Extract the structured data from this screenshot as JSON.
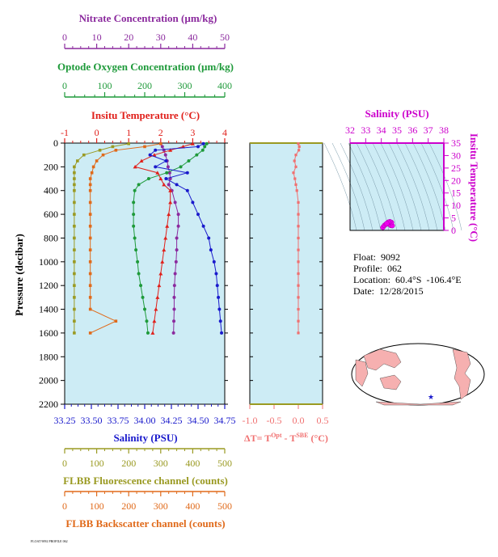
{
  "colors": {
    "nitrate": "#8b2a9e",
    "oxygen": "#1e9a3a",
    "temperature": "#e0201b",
    "salinity": "#1a1acc",
    "fluorescence": "#9a9a22",
    "backscatter": "#e06a1a",
    "delta_t": "#f07070",
    "ts_axis": "#cc00cc",
    "panel_bg": "#cdecf5"
  },
  "main_panel": {
    "ylabel": "Pressure (decibar)",
    "y_ticks": [
      "0",
      "200",
      "400",
      "600",
      "800",
      "1000",
      "1200",
      "1400",
      "1600",
      "1800",
      "2000",
      "2200"
    ],
    "axes": {
      "nitrate": {
        "label": "Nitrate Concentration (µm/kg)",
        "ticks": [
          "0",
          "10",
          "20",
          "30",
          "40",
          "50"
        ]
      },
      "oxygen": {
        "label": "Optode Oxygen Concentration (µm/kg)",
        "ticks": [
          "0",
          "100",
          "200",
          "300",
          "400"
        ]
      },
      "temperature": {
        "label": "Insitu Temperature (°C)",
        "ticks": [
          "-1",
          "0",
          "1",
          "2",
          "3",
          "4"
        ]
      },
      "salinity": {
        "label": "Salinity (PSU)",
        "ticks": [
          "33.25",
          "33.50",
          "33.75",
          "34.00",
          "34.25",
          "34.50",
          "34.75"
        ]
      },
      "fluorescence": {
        "label": "FLBB Fluorescence channel (counts)",
        "ticks": [
          "0",
          "100",
          "200",
          "300",
          "400",
          "500"
        ]
      },
      "backscatter": {
        "label": "FLBB Backscatter channel (counts)",
        "ticks": [
          "0",
          "100",
          "200",
          "300",
          "400",
          "500"
        ]
      }
    }
  },
  "delta_panel": {
    "xlabel_main": "ΔT= T",
    "xlabel_sup1": "Opt",
    "xlabel_mid": " - T",
    "xlabel_sup2": "SBE",
    "xlabel_end": " (°C)",
    "x_ticks": [
      "-1.0",
      "-0.5",
      "0.0",
      "0.5"
    ]
  },
  "ts_panel": {
    "top_label": "Salinity (PSU)",
    "top_ticks": [
      "32",
      "33",
      "34",
      "35",
      "36",
      "37",
      "38"
    ],
    "right_label": "Insitu Temperature (°C)",
    "right_ticks": [
      "0",
      "5",
      "10",
      "15",
      "20",
      "25",
      "30",
      "35"
    ]
  },
  "info": {
    "float": "Float:  9092",
    "profile": "Profile:  062",
    "location": "Location:  60.4°S  -106.4°E",
    "date": "Date:  12/28/2015"
  },
  "footer_text": "FLOAT 9092 PROFILE 062",
  "chart_data": [
    {
      "type": "line",
      "y_axis": "Pressure (decibar)",
      "ylim": [
        2200,
        0
      ],
      "series": [
        {
          "name": "Nitrate Concentration (µm/kg)",
          "xlim": [
            0,
            50
          ],
          "pressure": [
            5,
            30,
            60,
            100,
            150,
            200,
            250,
            300,
            350,
            400,
            500,
            600,
            700,
            800,
            900,
            1000,
            1100,
            1200,
            1300,
            1400,
            1500,
            1600
          ],
          "values": [
            30,
            30.5,
            31,
            31.5,
            32,
            32.3,
            32.8,
            33,
            32.5,
            33.5,
            34.5,
            35.5,
            35.5,
            35,
            35,
            34.8,
            34.5,
            34.3,
            34.2,
            34.2,
            34.1,
            34
          ]
        },
        {
          "name": "Optode Oxygen Concentration (µm/kg)",
          "xlim": [
            0,
            400
          ],
          "pressure": [
            5,
            30,
            60,
            100,
            150,
            200,
            250,
            300,
            350,
            400,
            500,
            600,
            700,
            800,
            900,
            1000,
            1100,
            1200,
            1300,
            1400,
            1500,
            1600
          ],
          "values": [
            355,
            350,
            345,
            330,
            310,
            290,
            255,
            210,
            185,
            175,
            172,
            172,
            172,
            175,
            178,
            182,
            185,
            190,
            195,
            200,
            205,
            208
          ]
        },
        {
          "name": "Insitu Temperature (°C)",
          "xlim": [
            -1,
            4
          ],
          "pressure": [
            5,
            30,
            60,
            100,
            150,
            200,
            250,
            300,
            350,
            400,
            500,
            600,
            700,
            800,
            900,
            1000,
            1100,
            1200,
            1300,
            1400,
            1500,
            1600
          ],
          "values": [
            3,
            2.7,
            2.3,
            1.8,
            1.4,
            1.2,
            1.9,
            2,
            2.1,
            2.3,
            2.3,
            2.25,
            2.2,
            2.15,
            2.1,
            2.05,
            2,
            1.95,
            1.9,
            1.85,
            1.8,
            1.75
          ]
        },
        {
          "name": "Salinity (PSU)",
          "xlim": [
            33.25,
            34.75
          ],
          "pressure": [
            5,
            30,
            60,
            100,
            150,
            200,
            250,
            300,
            350,
            400,
            500,
            600,
            700,
            800,
            900,
            1000,
            1100,
            1200,
            1300,
            1400,
            1500,
            1600
          ],
          "values": [
            34.55,
            34.5,
            34.1,
            34.05,
            34.2,
            34.1,
            34.4,
            34.2,
            34.3,
            34.4,
            34.45,
            34.5,
            34.55,
            34.6,
            34.62,
            34.65,
            34.67,
            34.68,
            34.69,
            34.7,
            34.71,
            34.72
          ]
        },
        {
          "name": "FLBB Fluorescence channel (counts)",
          "xlim": [
            0,
            500
          ],
          "pressure": [
            5,
            30,
            60,
            100,
            150,
            200,
            250,
            300,
            350,
            400,
            500,
            600,
            700,
            800,
            900,
            1000,
            1100,
            1200,
            1300,
            1400,
            1500,
            1600
          ],
          "values": [
            200,
            150,
            110,
            60,
            40,
            30,
            30,
            30,
            30,
            30,
            30,
            30,
            30,
            30,
            30,
            30,
            30,
            30,
            30,
            30,
            30,
            30
          ]
        },
        {
          "name": "FLBB Backscatter channel (counts)",
          "xlim": [
            0,
            500
          ],
          "pressure": [
            5,
            30,
            60,
            100,
            150,
            200,
            250,
            300,
            350,
            400,
            500,
            600,
            700,
            800,
            900,
            1000,
            1100,
            1200,
            1300,
            1400,
            1500,
            1600
          ],
          "values": [
            300,
            250,
            160,
            120,
            100,
            90,
            85,
            80,
            80,
            80,
            80,
            80,
            80,
            80,
            80,
            80,
            80,
            80,
            80,
            80,
            160,
            80
          ]
        }
      ]
    },
    {
      "type": "line",
      "x_label": "ΔT= T^Opt - T^SBE (°C)",
      "xlim": [
        -1.0,
        0.5
      ],
      "ylim": [
        2200,
        0
      ],
      "series": [
        {
          "pressure": [
            5,
            30,
            60,
            100,
            150,
            200,
            250,
            300,
            350,
            400,
            500,
            600,
            700,
            800,
            900,
            1000,
            1100,
            1200,
            1300,
            1400,
            1500,
            1600
          ],
          "values": [
            0,
            0.02,
            0.01,
            -0.05,
            -0.08,
            -0.05,
            -0.1,
            -0.07,
            -0.05,
            -0.03,
            0,
            0,
            0,
            0,
            0,
            0,
            0,
            0,
            0,
            0,
            0,
            0
          ]
        }
      ]
    },
    {
      "type": "scatter",
      "x_label": "Salinity (PSU)",
      "y_label": "Insitu Temperature (°C)",
      "xlim": [
        32,
        38
      ],
      "ylim": [
        0,
        35
      ],
      "series": [
        {
          "x": [
            34.1,
            34.2,
            34.3,
            34.4,
            34.5,
            34.6,
            34.7,
            34.65,
            34.55,
            34.45,
            34.35
          ],
          "y": [
            1.2,
            2.0,
            2.5,
            3.0,
            2.5,
            2.0,
            1.9,
            3.2,
            3.5,
            3.3,
            2.8
          ]
        }
      ]
    }
  ]
}
